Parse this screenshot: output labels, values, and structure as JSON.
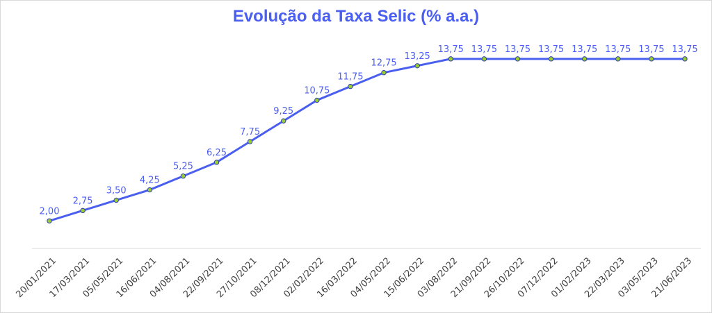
{
  "chart_data": {
    "type": "line",
    "title": "Evolução da Taxa Selic (% a.a.)",
    "xlabel": "",
    "ylabel": "",
    "categories": [
      "20/01/2021",
      "17/03/2021",
      "05/05/2021",
      "16/06/2021",
      "04/08/2021",
      "22/09/2021",
      "27/10/2021",
      "08/12/2021",
      "02/02/2022",
      "16/03/2022",
      "04/05/2022",
      "15/06/2022",
      "03/08/2022",
      "21/09/2022",
      "26/10/2022",
      "07/12/2022",
      "01/02/2023",
      "22/03/2023",
      "03/05/2023",
      "21/06/2023"
    ],
    "data_labels": [
      "2,00",
      "2,75",
      "3,50",
      "4,25",
      "5,25",
      "6,25",
      "7,75",
      "9,25",
      "10,75",
      "11,75",
      "12,75",
      "13,25",
      "13,75",
      "13,75",
      "13,75",
      "13,75",
      "13,75",
      "13,75",
      "13,75",
      "13,75"
    ],
    "series": [
      {
        "values": [
          2.0,
          2.75,
          3.5,
          4.25,
          5.25,
          6.25,
          7.75,
          9.25,
          10.75,
          11.75,
          12.75,
          13.25,
          13.75,
          13.75,
          13.75,
          13.75,
          13.75,
          13.75,
          13.75,
          13.75
        ]
      }
    ],
    "ylim": [
      0,
      15
    ],
    "grid": false,
    "legend": "none",
    "colors": {
      "line": "#4a5ef0",
      "marker": "#9acd32",
      "title": "#4a5ef0",
      "tick": "#404040",
      "axis": "#d9d9d9"
    }
  }
}
